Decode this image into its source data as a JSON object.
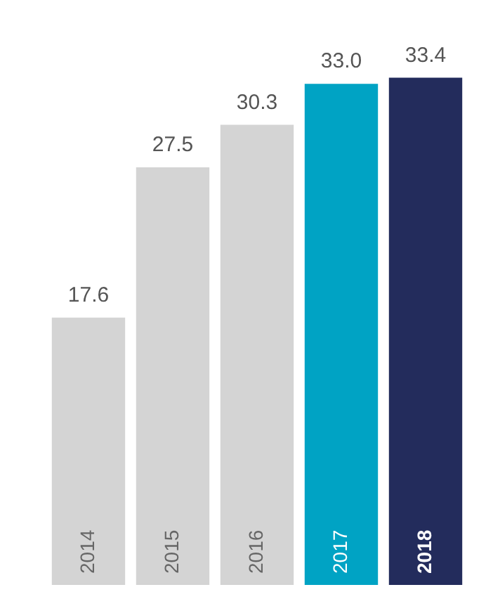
{
  "chart_data": {
    "type": "bar",
    "categories": [
      "2014",
      "2015",
      "2016",
      "2017",
      "2018"
    ],
    "values": [
      17.6,
      27.5,
      30.3,
      33.0,
      33.4
    ],
    "value_labels": [
      "17.6",
      "27.5",
      "30.3",
      "33.0",
      "33.4"
    ],
    "colors": [
      "#d4d4d4",
      "#d4d4d4",
      "#d4d4d4",
      "#00a3c4",
      "#232c5c"
    ],
    "legend": false
  }
}
